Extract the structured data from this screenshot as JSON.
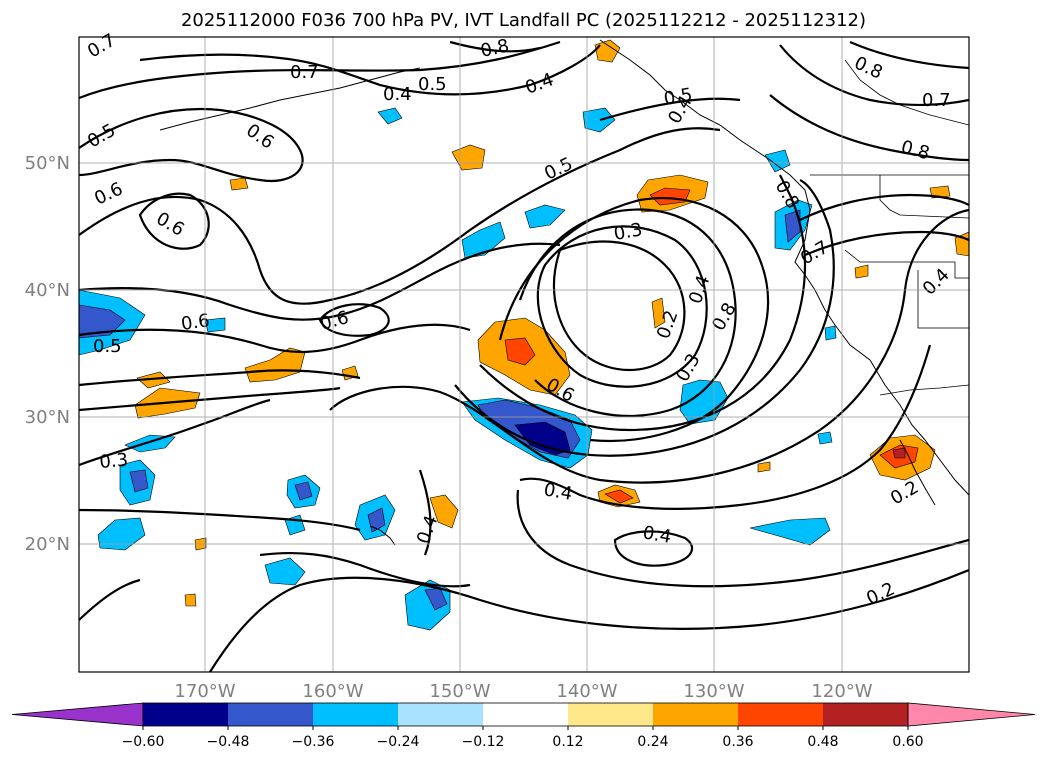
{
  "title": "2025112000 F036 700 hPa PV, IVT Landfall PC (2025112212 - 2025112312)",
  "lat_labels": [
    "50°N",
    "40°N",
    "30°N",
    "20°N"
  ],
  "lon_labels": [
    "170°W",
    "160°W",
    "150°W",
    "140°W",
    "130°W",
    "120°W"
  ],
  "colorbar": {
    "colors": [
      "#9933cc",
      "#00008b",
      "#3557cc",
      "#00bfff",
      "#a8e2ff",
      "#ffffff",
      "#ffe88a",
      "#ffa500",
      "#ff4500",
      "#b22222",
      "#ff88aa"
    ],
    "ticks": [
      "−0.60",
      "−0.48",
      "−0.36",
      "−0.24",
      "−0.12",
      "0.12",
      "0.24",
      "0.36",
      "0.48",
      "0.60"
    ]
  },
  "contour_labels": [
    "0.7",
    "0.8",
    "0.7",
    "0.5",
    "0.4",
    "0.4",
    "0.5",
    "0.6",
    "0.5",
    "0.8",
    "0.4",
    "0.8",
    "0.7",
    "0.8",
    "0.6",
    "0.6",
    "0.5",
    "0.3",
    "0.4",
    "0.2",
    "0.8",
    "0.7",
    "0.4",
    "0.6",
    "0.5",
    "0.6",
    "0.6",
    "0.3",
    "0.3",
    "0.4",
    "0.4",
    "0.4",
    "0.2",
    "0.2"
  ]
}
